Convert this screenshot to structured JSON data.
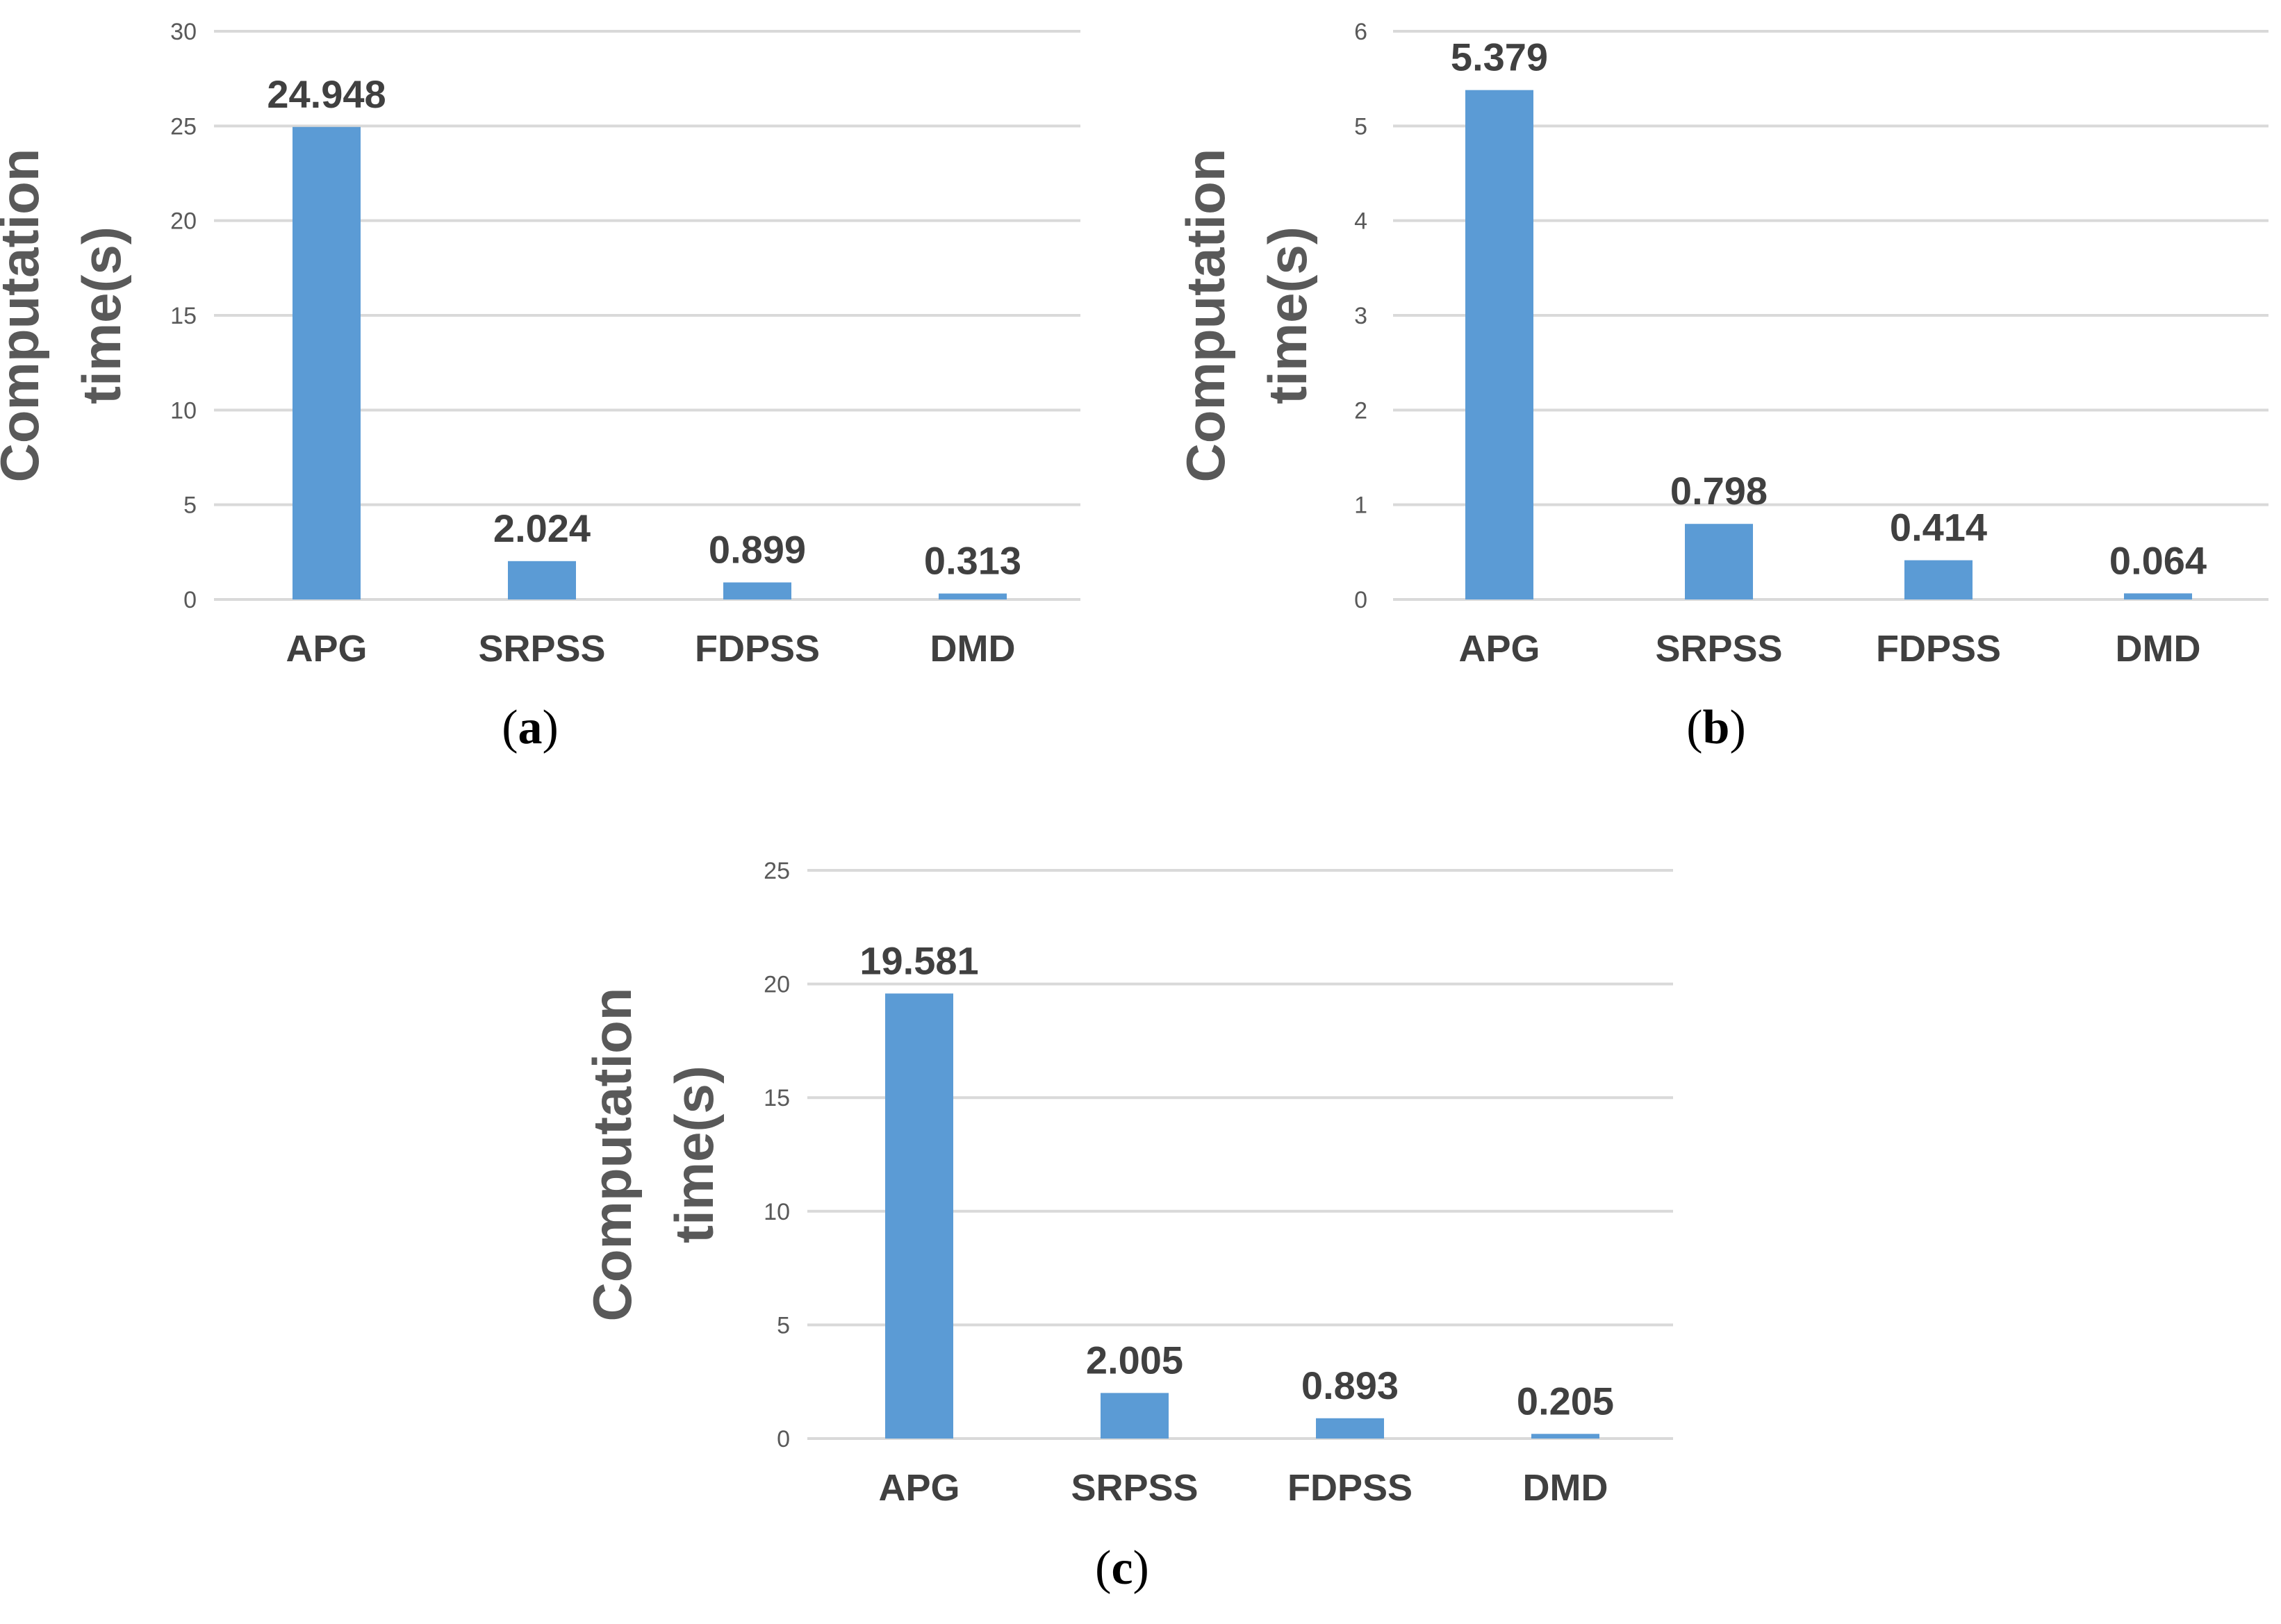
{
  "chart_data": [
    {
      "panel": "(a)",
      "panel_letter": "a",
      "type": "bar",
      "categories": [
        "APG",
        "SRPSS",
        "FDPSS",
        "DMD"
      ],
      "values": [
        24.948,
        2.024,
        0.899,
        0.313
      ],
      "value_labels": [
        "24.948",
        "2.024",
        "0.899",
        "0.313"
      ],
      "ylabel_line1": "Computation",
      "ylabel_line2": "time(s)",
      "ylim": [
        0,
        30
      ],
      "yticks": [
        0,
        5,
        10,
        15,
        20,
        25,
        30
      ],
      "grid": true,
      "bar_color": "#5B9BD5"
    },
    {
      "panel": "(b)",
      "panel_letter": "b",
      "type": "bar",
      "categories": [
        "APG",
        "SRPSS",
        "FDPSS",
        "DMD"
      ],
      "values": [
        5.379,
        0.798,
        0.414,
        0.064
      ],
      "value_labels": [
        "5.379",
        "0.798",
        "0.414",
        "0.064"
      ],
      "ylabel_line1": "Computation",
      "ylabel_line2": "time(s)",
      "ylim": [
        0,
        6
      ],
      "yticks": [
        0,
        1,
        2,
        3,
        4,
        5,
        6
      ],
      "grid": true,
      "bar_color": "#5B9BD5"
    },
    {
      "panel": "(c)",
      "panel_letter": "c",
      "type": "bar",
      "categories": [
        "APG",
        "SRPSS",
        "FDPSS",
        "DMD"
      ],
      "values": [
        19.581,
        2.005,
        0.893,
        0.205
      ],
      "value_labels": [
        "19.581",
        "2.005",
        "0.893",
        "0.205"
      ],
      "ylabel_line1": "Computation",
      "ylabel_line2": "time(s)",
      "ylim": [
        0,
        25
      ],
      "yticks": [
        0,
        5,
        10,
        15,
        20,
        25
      ],
      "grid": true,
      "bar_color": "#5B9BD5"
    }
  ]
}
